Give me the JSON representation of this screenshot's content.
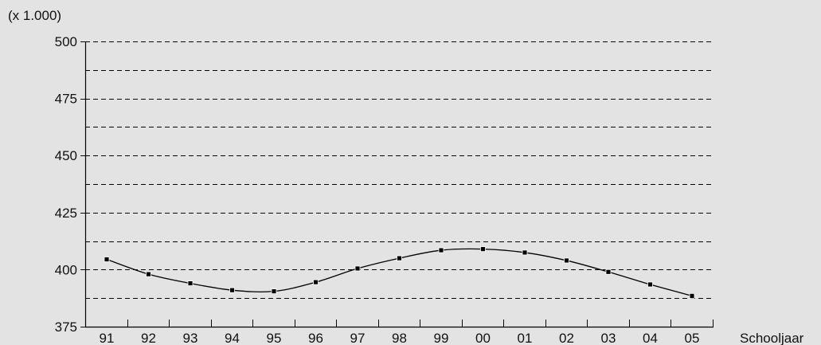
{
  "chart_data": {
    "type": "line",
    "unit_label": "(x 1.000)",
    "xlabel": "Schooljaar",
    "ylabel": "",
    "categories": [
      "91",
      "92",
      "93",
      "94",
      "95",
      "96",
      "97",
      "98",
      "99",
      "00",
      "01",
      "02",
      "03",
      "04",
      "05"
    ],
    "series": [
      {
        "values": [
          404.5,
          398,
          394,
          391,
          390.5,
          394.5,
          400.5,
          405,
          408.5,
          409,
          407.5,
          404,
          399,
          393.5,
          388.5
        ]
      }
    ],
    "ylim": [
      375,
      500
    ],
    "yticks": [
      375,
      400,
      425,
      450,
      475,
      500
    ],
    "grid_lines": [
      387.5,
      400,
      412.5,
      425,
      437.5,
      450,
      462.5,
      475,
      487.5,
      500
    ],
    "grid": "dashed-horizontal",
    "colors": {
      "background": "#e3e3e3",
      "line": "#000000",
      "grid": "#000000"
    }
  }
}
